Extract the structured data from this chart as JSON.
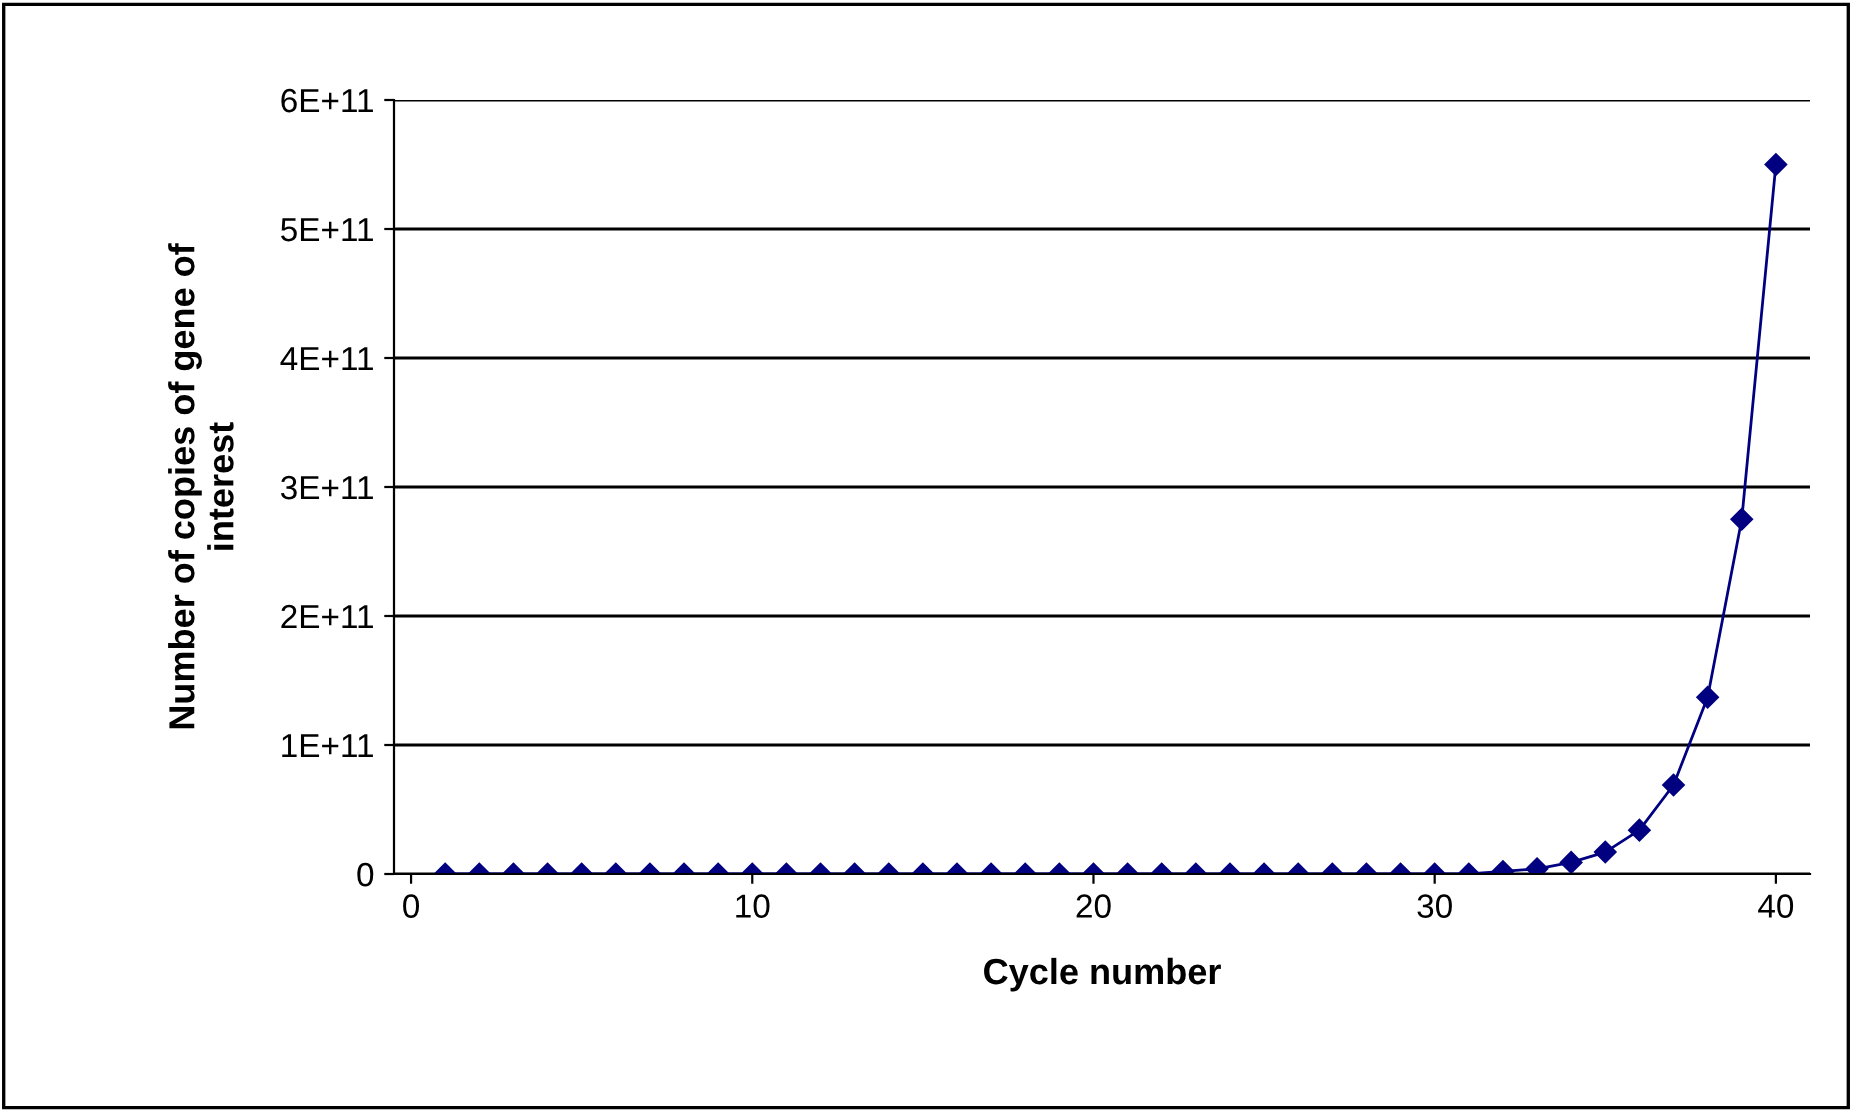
{
  "chart_data": {
    "type": "line",
    "xlabel": "Cycle number",
    "ylabel": "Number of copies of gene of\ninterest",
    "x": [
      1,
      2,
      3,
      4,
      5,
      6,
      7,
      8,
      9,
      10,
      11,
      12,
      13,
      14,
      15,
      16,
      17,
      18,
      19,
      20,
      21,
      22,
      23,
      24,
      25,
      26,
      27,
      28,
      29,
      30,
      31,
      32,
      33,
      34,
      35,
      36,
      37,
      38,
      39,
      40
    ],
    "series": [
      {
        "color": "#000080",
        "values": [
          0,
          0,
          0,
          0,
          0,
          0,
          0,
          0,
          0,
          0,
          0,
          0,
          0,
          0,
          0,
          0,
          0,
          0,
          0,
          0,
          0,
          0,
          0,
          0,
          0,
          0,
          0,
          0,
          0,
          0,
          0,
          2000000000.0,
          4000000000.0,
          9000000000.0,
          17000000000.0,
          34000000000.0,
          69000000000.0,
          137000000000.0,
          275000000000.0,
          550000000000.0
        ]
      }
    ],
    "xlim": [
      -0.5,
      41
    ],
    "xticks": [
      0,
      10,
      20,
      30,
      40
    ],
    "ylim": [
      0,
      600000000000.0
    ],
    "yticks": [
      {
        "value": 0,
        "label": "0"
      },
      {
        "value": 100000000000.0,
        "label": "1E+11"
      },
      {
        "value": 200000000000.0,
        "label": "2E+11"
      },
      {
        "value": 300000000000.0,
        "label": "3E+11"
      },
      {
        "value": 400000000000.0,
        "label": "4E+11"
      },
      {
        "value": 500000000000.0,
        "label": "5E+11"
      },
      {
        "value": 600000000000.0,
        "label": "6E+11"
      }
    ],
    "grid": "y",
    "marker": "diamond",
    "line_style": "solid"
  }
}
